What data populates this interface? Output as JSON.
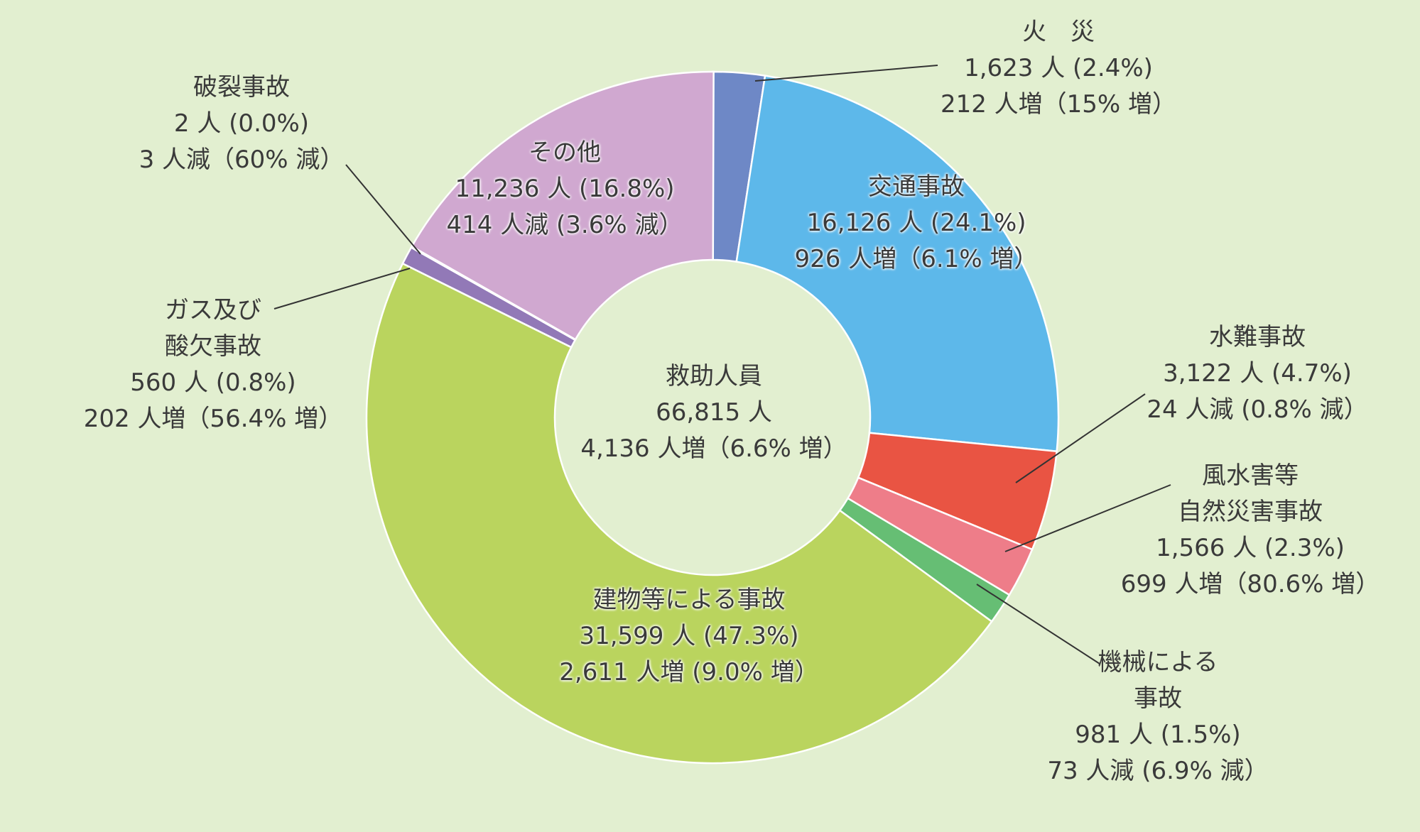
{
  "chart_data": {
    "type": "pie",
    "variant": "donut",
    "center": {
      "title": "救助人員",
      "total": "66,815 人",
      "change": "4,136 人増（6.6% 増）"
    },
    "slices": [
      {
        "name": "火　災",
        "value": 1623,
        "percent": 2.4,
        "count_text": "1,623 人 (2.4%)",
        "change_text": "212 人増（15% 増）",
        "color": "#6e88c6"
      },
      {
        "name": "交通事故",
        "value": 16126,
        "percent": 24.1,
        "count_text": "16,126 人 (24.1%)",
        "change_text": "926 人増（6.1% 増）",
        "color": "#5db8ea"
      },
      {
        "name": "水難事故",
        "value": 3122,
        "percent": 4.7,
        "count_text": "3,122 人 (4.7%)",
        "change_text": "24 人減 (0.8% 減）",
        "color": "#e95443"
      },
      {
        "name": "風水害等自然災害事故",
        "value": 1566,
        "percent": 2.3,
        "count_text": "1,566 人 (2.3%)",
        "change_text": "699 人増（80.6% 増）",
        "color": "#ee7d89"
      },
      {
        "name": "機械による事故",
        "value": 981,
        "percent": 1.5,
        "count_text": "981 人 (1.5%)",
        "change_text": "73 人減 (6.9% 減）",
        "color": "#66be74"
      },
      {
        "name": "建物等による事故",
        "value": 31599,
        "percent": 47.3,
        "count_text": "31,599 人 (47.3%)",
        "change_text": "2,611 人増 (9.0% 増）",
        "color": "#bad45e"
      },
      {
        "name": "ガス及び酸欠事故",
        "value": 560,
        "percent": 0.8,
        "count_text": "560 人 (0.8%)",
        "change_text": "202 人増（56.4% 増）",
        "color": "#9279b7"
      },
      {
        "name": "破裂事故",
        "value": 2,
        "percent": 0.0,
        "count_text": "2 人 (0.0%)",
        "change_text": "3 人減（60% 減）",
        "color": "#9279b7"
      },
      {
        "name": "その他",
        "value": 11236,
        "percent": 16.8,
        "count_text": "11,236 人 (16.8%)",
        "change_text": "414 人減 (3.6% 減）",
        "color": "#d0a8d0"
      }
    ]
  },
  "labels": {
    "fire": {
      "name": "火　災"
    },
    "traffic": {
      "name": "交通事故"
    },
    "water": {
      "name": "水難事故"
    },
    "natural": {
      "name1": "風水害等",
      "name2": "自然災害事故"
    },
    "machine": {
      "name1": "機械による",
      "name2": "事故"
    },
    "building": {
      "name": "建物等による事故"
    },
    "gas": {
      "name1": "ガス及び",
      "name2": "酸欠事故"
    },
    "burst": {
      "name": "破裂事故"
    },
    "other": {
      "name": "その他"
    }
  }
}
